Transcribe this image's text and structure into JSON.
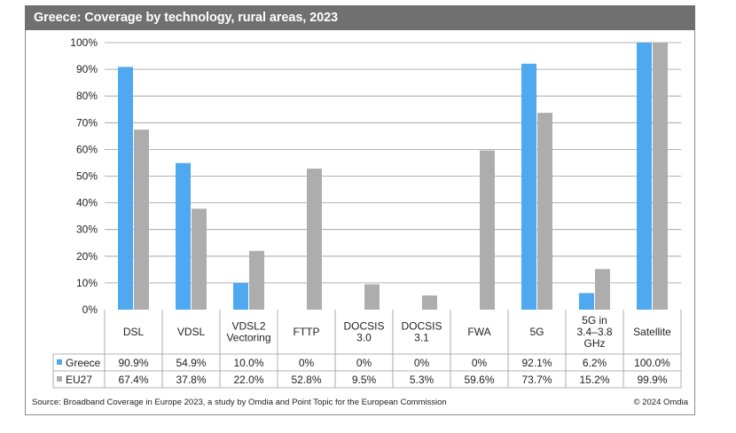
{
  "title": "Greece: Coverage by technology, rural areas, 2023",
  "footer": {
    "source": "Source: Broadband Coverage in Europe 2023, a study by Omdia and Point Topic for the European Commission",
    "copyright": "© 2024 Omdia"
  },
  "chart_data": {
    "type": "bar",
    "categories": [
      [
        "DSL"
      ],
      [
        "VDSL"
      ],
      [
        "VDSL2",
        "Vectoring"
      ],
      [
        "FTTP"
      ],
      [
        "DOCSIS",
        "3.0"
      ],
      [
        "DOCSIS",
        "3.1"
      ],
      [
        "FWA"
      ],
      [
        "5G"
      ],
      [
        "5G in",
        "3.4–3.8",
        "GHz"
      ],
      [
        "Satellite"
      ]
    ],
    "series": [
      {
        "name": "Greece",
        "color": "#4FA9F0",
        "values": [
          90.9,
          54.9,
          10.0,
          0,
          0,
          0,
          0,
          92.1,
          6.2,
          100.0
        ],
        "labels": [
          "90.9%",
          "54.9%",
          "10.0%",
          "0%",
          "0%",
          "0%",
          "0%",
          "92.1%",
          "6.2%",
          "100.0%"
        ]
      },
      {
        "name": "EU27",
        "color": "#ADADAD",
        "values": [
          67.4,
          37.8,
          22.0,
          52.8,
          9.5,
          5.3,
          59.6,
          73.7,
          15.2,
          99.9
        ],
        "labels": [
          "67.4%",
          "37.8%",
          "22.0%",
          "52.8%",
          "9.5%",
          "5.3%",
          "59.6%",
          "73.7%",
          "15.2%",
          "99.9%"
        ]
      }
    ],
    "yticks": [
      "0%",
      "10%",
      "20%",
      "30%",
      "40%",
      "50%",
      "60%",
      "70%",
      "80%",
      "90%",
      "100%"
    ],
    "ylim": [
      0,
      100
    ],
    "grid": true,
    "legend": "data-table"
  }
}
